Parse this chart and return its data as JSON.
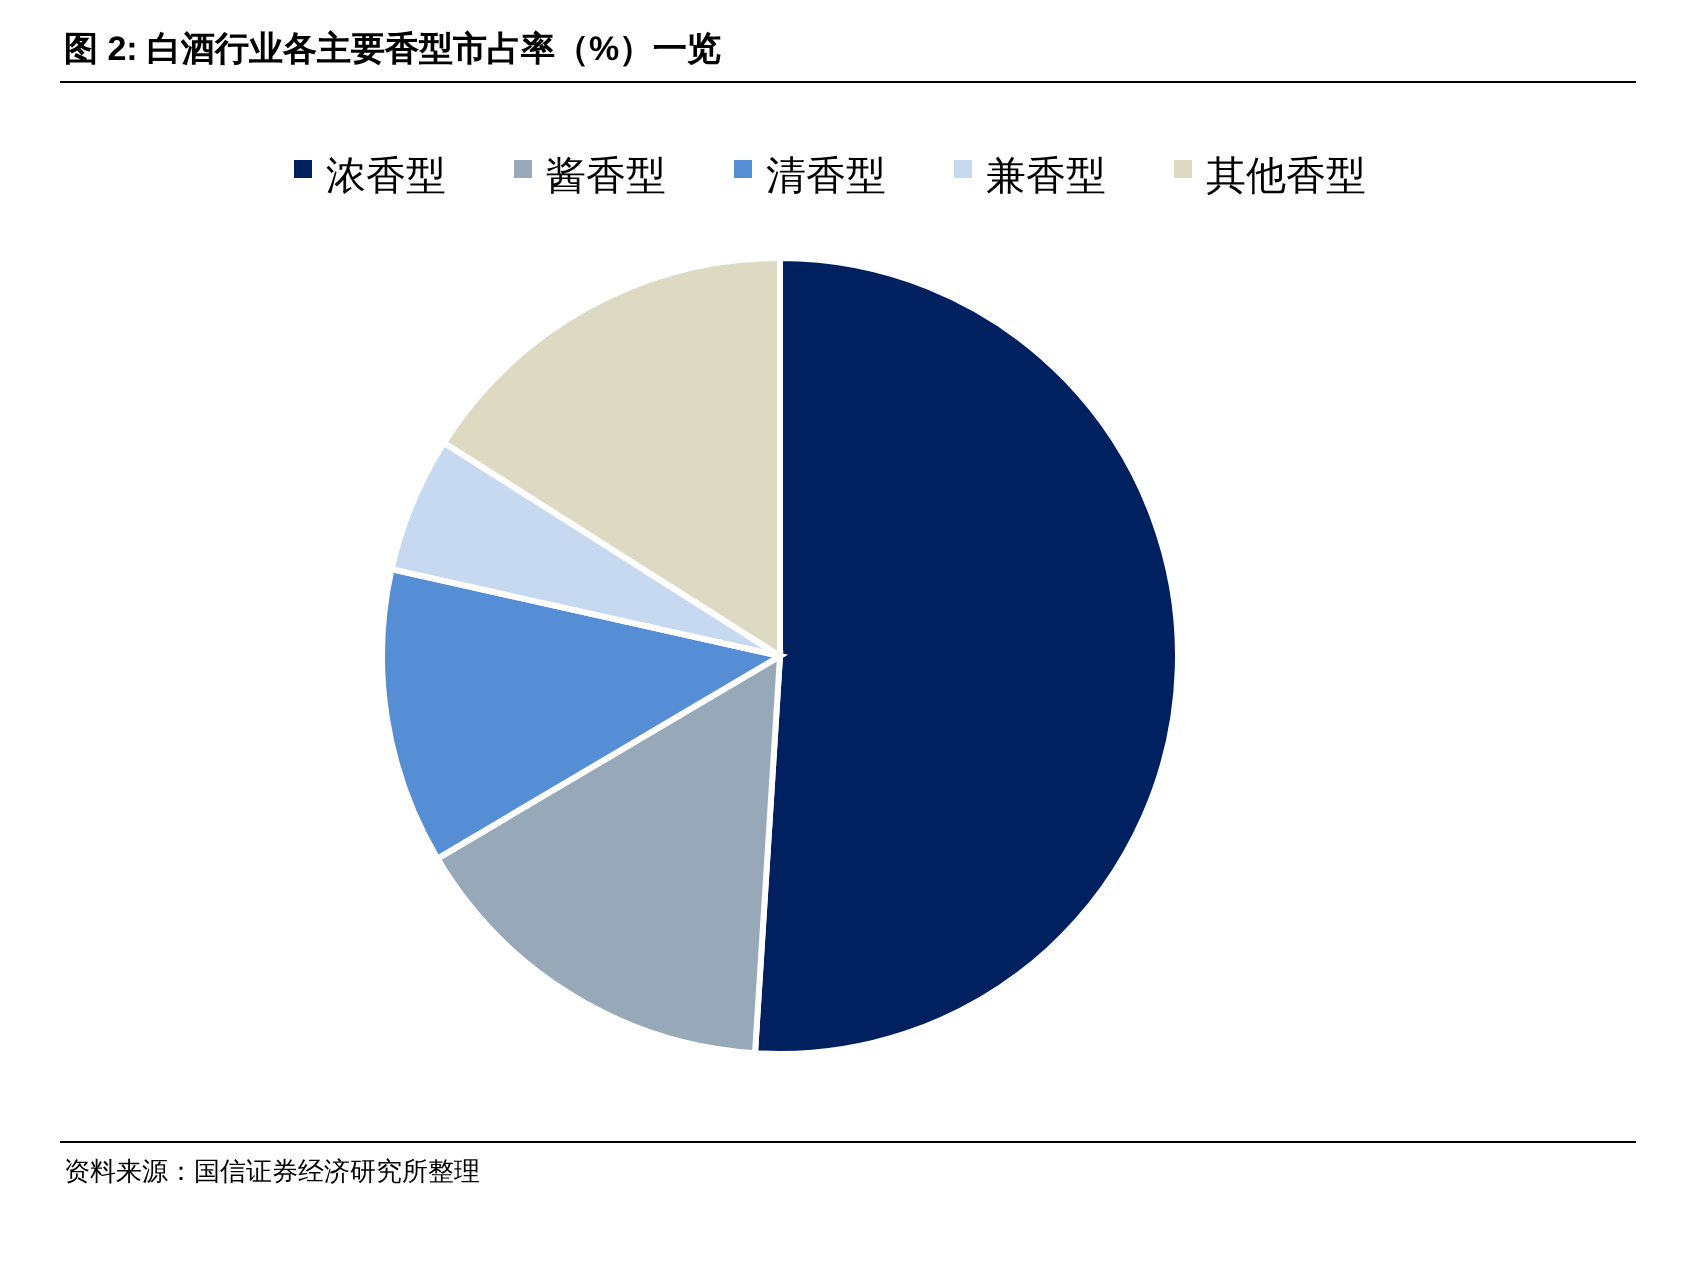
{
  "chart_data": {
    "type": "pie",
    "title": "图 2: 白酒行业各主要香型市占率（%）一览",
    "categories": [
      "浓香型",
      "酱香型",
      "清香型",
      "兼香型",
      "其他香型"
    ],
    "values": [
      51,
      15.5,
      12,
      5.5,
      16
    ],
    "colors": [
      "#002060",
      "#97a9b9",
      "#558ed5",
      "#c6d9f1",
      "#ddd9c3"
    ],
    "legend": "top",
    "annotations": [
      "资料来源：国信证券经济研究所整理"
    ]
  }
}
